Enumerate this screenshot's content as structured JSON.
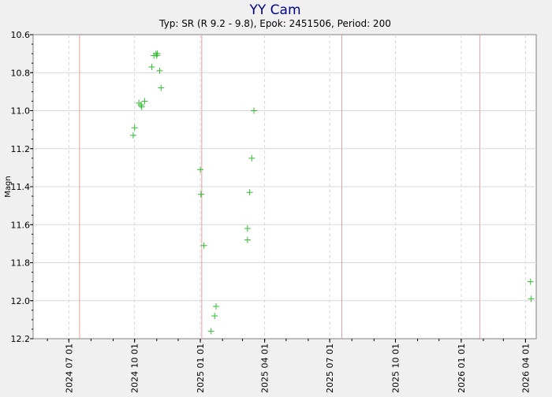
{
  "chart_data": {
    "type": "scatter",
    "title": "YY Cam",
    "subtitle": "Typ: SR (R 9.2 - 9.8), Epok: 2451506, Period: 200",
    "ylabel": "Magn",
    "xlabel": "",
    "y_inverted": true,
    "ylim": [
      10.6,
      12.2
    ],
    "y_ticks": [
      "10.6",
      "10.8",
      "11.0",
      "11.2",
      "11.4",
      "11.6",
      "11.8",
      "12.0",
      "12.2"
    ],
    "xlim": [
      "2024-05-12",
      "2026-04-16"
    ],
    "x_ticks": [
      "2024 07 01",
      "2024 10 01",
      "2025 01 01",
      "2025 04 01",
      "2025 07 01",
      "2025 10 01",
      "2026 01 01",
      "2026 04 01"
    ],
    "grid": true,
    "marker": "+",
    "colors": {
      "points": "#33bb33",
      "maxima_lines": "#e8a0a0",
      "title": "#000080",
      "grid": "#d8d8d8"
    },
    "maxima_lines": [
      "2024-07-16",
      "2025-01-03",
      "2025-07-18",
      "2026-01-27"
    ],
    "points": [
      {
        "x": "2024-09-29",
        "y": 11.13
      },
      {
        "x": "2024-10-01",
        "y": 11.09
      },
      {
        "x": "2024-10-07",
        "y": 10.96
      },
      {
        "x": "2024-10-10",
        "y": 10.97
      },
      {
        "x": "2024-10-11",
        "y": 10.98
      },
      {
        "x": "2024-10-15",
        "y": 10.95
      },
      {
        "x": "2024-10-25",
        "y": 10.77
      },
      {
        "x": "2024-10-28",
        "y": 10.71
      },
      {
        "x": "2024-10-31",
        "y": 10.7
      },
      {
        "x": "2024-11-01",
        "y": 10.71
      },
      {
        "x": "2024-11-02",
        "y": 10.7
      },
      {
        "x": "2024-11-05",
        "y": 10.79
      },
      {
        "x": "2024-11-07",
        "y": 10.88
      },
      {
        "x": "2025-01-01",
        "y": 11.31
      },
      {
        "x": "2025-01-02",
        "y": 11.44
      },
      {
        "x": "2025-01-06",
        "y": 11.71
      },
      {
        "x": "2025-01-16",
        "y": 12.16
      },
      {
        "x": "2025-01-21",
        "y": 12.08
      },
      {
        "x": "2025-01-23",
        "y": 12.03
      },
      {
        "x": "2025-03-08",
        "y": 11.62
      },
      {
        "x": "2025-03-08",
        "y": 11.68
      },
      {
        "x": "2025-03-11",
        "y": 11.43
      },
      {
        "x": "2025-03-14",
        "y": 11.25
      },
      {
        "x": "2025-03-17",
        "y": 11.0
      },
      {
        "x": "2026-04-08",
        "y": 11.9
      },
      {
        "x": "2026-04-09",
        "y": 11.99
      }
    ]
  }
}
